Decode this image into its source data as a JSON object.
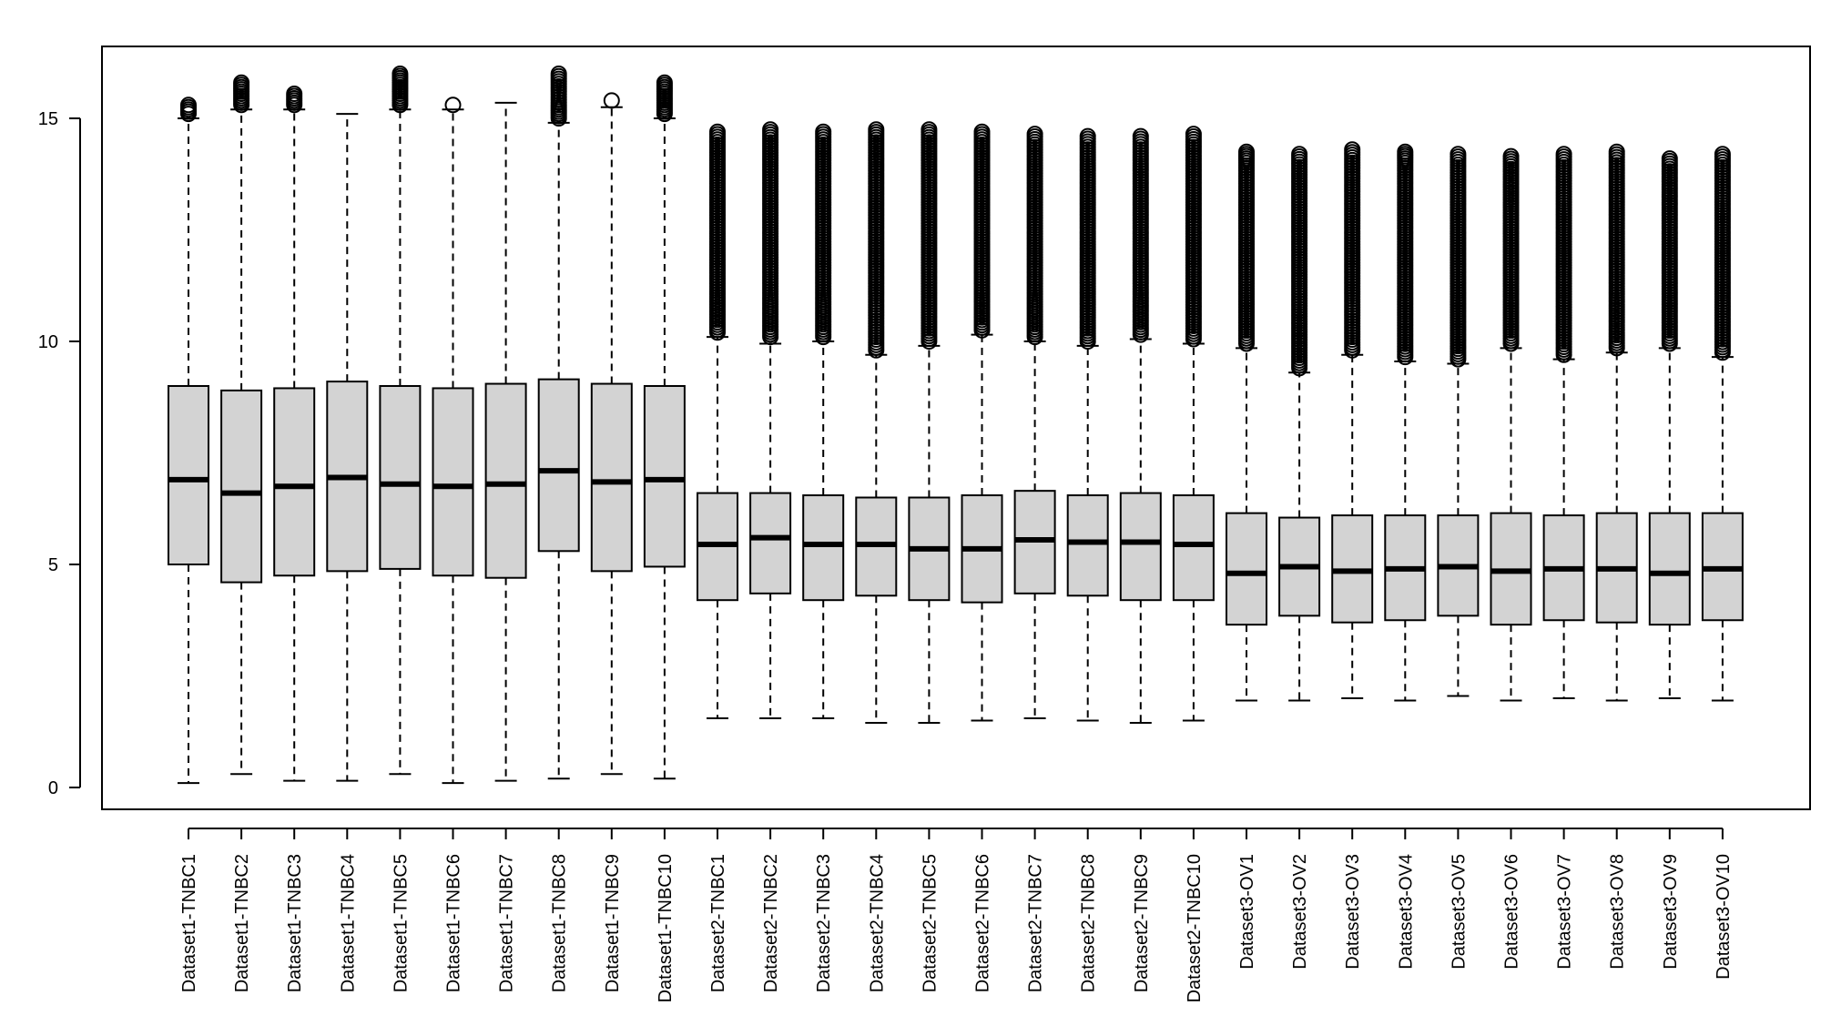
{
  "chart_data": {
    "type": "boxplot",
    "title": "",
    "xlabel": "",
    "ylabel": "",
    "ylim": [
      -0.5,
      16.5
    ],
    "yticks": [
      0,
      5,
      10,
      15
    ],
    "grid": false,
    "legend": "none",
    "box_fill": "#d3d3d3",
    "outlier_symbol": "open-circle",
    "categories": [
      "Dataset1-TNBC1",
      "Dataset1-TNBC2",
      "Dataset1-TNBC3",
      "Dataset1-TNBC4",
      "Dataset1-TNBC5",
      "Dataset1-TNBC6",
      "Dataset1-TNBC7",
      "Dataset1-TNBC8",
      "Dataset1-TNBC9",
      "Dataset1-TNBC10",
      "Dataset2-TNBC1",
      "Dataset2-TNBC2",
      "Dataset2-TNBC3",
      "Dataset2-TNBC4",
      "Dataset2-TNBC5",
      "Dataset2-TNBC6",
      "Dataset2-TNBC7",
      "Dataset2-TNBC8",
      "Dataset2-TNBC9",
      "Dataset2-TNBC10",
      "Dataset3-OV1",
      "Dataset3-OV2",
      "Dataset3-OV3",
      "Dataset3-OV4",
      "Dataset3-OV5",
      "Dataset3-OV6",
      "Dataset3-OV7",
      "Dataset3-OV8",
      "Dataset3-OV9",
      "Dataset3-OV10"
    ],
    "boxes": [
      {
        "min": 0.1,
        "q1": 5.0,
        "median": 6.9,
        "q3": 9.0,
        "max": 15.0,
        "outliers": [
          15.1,
          15.2,
          15.3
        ]
      },
      {
        "min": 0.3,
        "q1": 4.6,
        "median": 6.6,
        "q3": 8.9,
        "max": 15.2,
        "outliers": [
          15.3,
          15.5,
          15.8
        ]
      },
      {
        "min": 0.15,
        "q1": 4.75,
        "median": 6.75,
        "q3": 8.95,
        "max": 15.2,
        "outliers": [
          15.3,
          15.55
        ]
      },
      {
        "min": 0.15,
        "q1": 4.85,
        "median": 6.95,
        "q3": 9.1,
        "max": 15.1,
        "outliers": []
      },
      {
        "min": 0.3,
        "q1": 4.9,
        "median": 6.8,
        "q3": 9.0,
        "max": 15.2,
        "outliers": [
          15.3,
          15.5,
          15.7,
          16.0
        ]
      },
      {
        "min": 0.1,
        "q1": 4.75,
        "median": 6.75,
        "q3": 8.95,
        "max": 15.2,
        "outliers": [
          15.3
        ]
      },
      {
        "min": 0.15,
        "q1": 4.7,
        "median": 6.8,
        "q3": 9.05,
        "max": 15.35,
        "outliers": []
      },
      {
        "min": 0.2,
        "q1": 5.3,
        "median": 7.1,
        "q3": 9.15,
        "max": 14.9,
        "outliers": [
          15.0,
          15.3,
          15.6,
          16.0
        ]
      },
      {
        "min": 0.3,
        "q1": 4.85,
        "median": 6.85,
        "q3": 9.05,
        "max": 15.25,
        "outliers": [
          15.4
        ]
      },
      {
        "min": 0.2,
        "q1": 4.95,
        "median": 6.9,
        "q3": 9.0,
        "max": 15.0,
        "outliers": [
          15.1,
          15.3,
          15.5,
          15.8
        ]
      },
      {
        "min": 1.55,
        "q1": 4.2,
        "median": 5.45,
        "q3": 6.6,
        "max": 10.1,
        "outliers": [
          10.2,
          11,
          12,
          13,
          14,
          14.7
        ]
      },
      {
        "min": 1.55,
        "q1": 4.35,
        "median": 5.6,
        "q3": 6.6,
        "max": 9.95,
        "outliers": [
          10.1,
          11,
          12,
          13,
          14,
          14.75
        ]
      },
      {
        "min": 1.55,
        "q1": 4.2,
        "median": 5.45,
        "q3": 6.55,
        "max": 10.0,
        "outliers": [
          10.1,
          11,
          12,
          13,
          14,
          14.7
        ]
      },
      {
        "min": 1.45,
        "q1": 4.3,
        "median": 5.45,
        "q3": 6.5,
        "max": 9.7,
        "outliers": [
          9.8,
          11,
          12,
          13,
          14,
          14.75
        ]
      },
      {
        "min": 1.45,
        "q1": 4.2,
        "median": 5.35,
        "q3": 6.5,
        "max": 9.9,
        "outliers": [
          10.0,
          11,
          12,
          13,
          14,
          14.75
        ]
      },
      {
        "min": 1.5,
        "q1": 4.15,
        "median": 5.35,
        "q3": 6.55,
        "max": 10.15,
        "outliers": [
          10.25,
          11,
          12,
          13,
          14,
          14.7
        ]
      },
      {
        "min": 1.55,
        "q1": 4.35,
        "median": 5.55,
        "q3": 6.65,
        "max": 10.0,
        "outliers": [
          10.1,
          11,
          12,
          13,
          14,
          14.65
        ]
      },
      {
        "min": 1.5,
        "q1": 4.3,
        "median": 5.5,
        "q3": 6.55,
        "max": 9.9,
        "outliers": [
          10.0,
          11,
          12,
          13,
          14,
          14.6
        ]
      },
      {
        "min": 1.45,
        "q1": 4.2,
        "median": 5.5,
        "q3": 6.6,
        "max": 10.05,
        "outliers": [
          10.15,
          11,
          12,
          13,
          14,
          14.6
        ]
      },
      {
        "min": 1.5,
        "q1": 4.2,
        "median": 5.45,
        "q3": 6.55,
        "max": 9.95,
        "outliers": [
          10.05,
          11,
          12,
          13,
          14,
          14.65
        ]
      },
      {
        "min": 1.95,
        "q1": 3.65,
        "median": 4.8,
        "q3": 6.15,
        "max": 9.85,
        "outliers": [
          9.95,
          11,
          12,
          13,
          14,
          14.25
        ]
      },
      {
        "min": 1.95,
        "q1": 3.85,
        "median": 4.95,
        "q3": 6.05,
        "max": 9.3,
        "outliers": [
          9.4,
          10.5,
          11.5,
          12.5,
          13.5,
          14.2
        ]
      },
      {
        "min": 2.0,
        "q1": 3.7,
        "median": 4.85,
        "q3": 6.1,
        "max": 9.7,
        "outliers": [
          9.8,
          11,
          12,
          13,
          14.3
        ]
      },
      {
        "min": 1.95,
        "q1": 3.75,
        "median": 4.9,
        "q3": 6.1,
        "max": 9.55,
        "outliers": [
          9.65,
          11,
          12,
          13,
          14,
          14.25
        ]
      },
      {
        "min": 2.05,
        "q1": 3.85,
        "median": 4.95,
        "q3": 6.1,
        "max": 9.5,
        "outliers": [
          9.6,
          11,
          12,
          13,
          14.2
        ]
      },
      {
        "min": 1.95,
        "q1": 3.65,
        "median": 4.85,
        "q3": 6.15,
        "max": 9.85,
        "outliers": [
          9.95,
          11,
          12,
          13,
          14.15
        ]
      },
      {
        "min": 2.0,
        "q1": 3.75,
        "median": 4.9,
        "q3": 6.1,
        "max": 9.6,
        "outliers": [
          9.7,
          11,
          12,
          13,
          14.2
        ]
      },
      {
        "min": 1.95,
        "q1": 3.7,
        "median": 4.9,
        "q3": 6.15,
        "max": 9.75,
        "outliers": [
          9.85,
          11,
          12,
          13,
          14.25
        ]
      },
      {
        "min": 2.0,
        "q1": 3.65,
        "median": 4.8,
        "q3": 6.15,
        "max": 9.85,
        "outliers": [
          9.95,
          11,
          12,
          13,
          14.1
        ]
      },
      {
        "min": 1.95,
        "q1": 3.75,
        "median": 4.9,
        "q3": 6.15,
        "max": 9.65,
        "outliers": [
          9.75,
          11,
          12,
          13,
          14.2
        ]
      }
    ]
  }
}
